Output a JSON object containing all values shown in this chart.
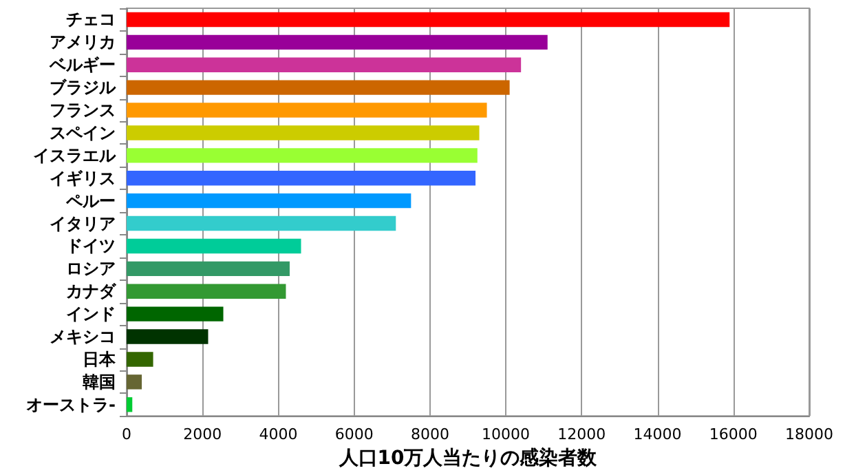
{
  "chart_data": {
    "type": "bar",
    "orientation": "horizontal",
    "xlabel": "人口10万人当たりの感染者数",
    "categories": [
      "チェコ",
      "アメリカ",
      "ベルギー",
      "ブラジル",
      "フランス",
      "スペイン",
      "イスラエル",
      "イギリス",
      "ペルー",
      "イタリア",
      "ドイツ",
      "ロシア",
      "カナダ",
      "インド",
      "メキシコ",
      "日本",
      "韓国",
      "オーストラ-"
    ],
    "values": [
      15900,
      11100,
      10400,
      10100,
      9500,
      9300,
      9250,
      9200,
      7500,
      7100,
      4600,
      4300,
      4200,
      2550,
      2150,
      700,
      400,
      150
    ],
    "colors": [
      "#ff0000",
      "#990099",
      "#cc3399",
      "#cc6600",
      "#ff9900",
      "#cccc00",
      "#99ff33",
      "#3366ff",
      "#0099ff",
      "#33cccc",
      "#00cc99",
      "#339966",
      "#339933",
      "#006600",
      "#003300",
      "#336600",
      "#666633",
      "#00cc33"
    ],
    "xlim": [
      0,
      18000
    ],
    "xticks": [
      0,
      2000,
      4000,
      6000,
      8000,
      10000,
      12000,
      14000,
      16000,
      18000
    ],
    "grid": "x"
  }
}
